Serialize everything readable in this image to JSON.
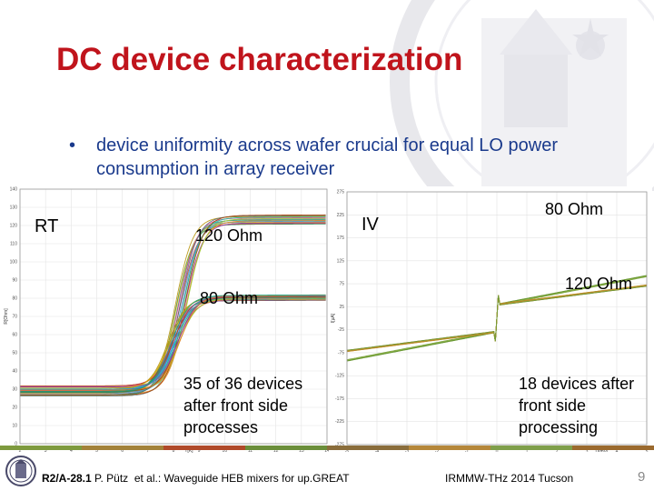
{
  "slide": {
    "title": "DC device characterization",
    "bullet": "device uniformity across wafer crucial for equal LO power consumption in array receiver",
    "bullet_marker": "•",
    "page_number": "9"
  },
  "labels": {
    "rt": "RT",
    "ohm120_left": "120 Ohm",
    "ohm80_left": "80 Ohm",
    "iv": "IV",
    "ohm80_right": "80 Ohm",
    "ohm120_right": "120 Ohm",
    "devices_left": "35 of 36 devices after front side processes",
    "devices_right": "18 devices after front side processing"
  },
  "footer": {
    "ref_bold": "R2/A-28.1",
    "ref_rest": " P. Pütz  et al.: Waveguide HEB mixers for up.GREAT",
    "conference": "IRMMW-THz 2014 Tucson",
    "bar_colors": [
      "#7e9a3e",
      "#a3823a",
      "#b04a2a",
      "#6b8e3a",
      "#8a6d3b",
      "#b5873a",
      "#7f9f4a",
      "#9b6a2e"
    ]
  },
  "colors": {
    "title": "#c0141c",
    "bullet": "#1a3a8c"
  },
  "chart_data": [
    {
      "type": "line",
      "title": "",
      "xlabel": "T[K]",
      "ylabel": "R[Ohm]",
      "xlim": [
        2,
        14
      ],
      "ylim": [
        0,
        140
      ],
      "x_ticks": [
        "2",
        "3",
        "4",
        "5",
        "6",
        "7",
        "8",
        "9",
        "10",
        "11",
        "12",
        "13",
        "14"
      ],
      "y_ticks": [
        "0",
        "10",
        "20",
        "30",
        "40",
        "50",
        "60",
        "70",
        "80",
        "90",
        "100",
        "110",
        "120",
        "130",
        "140"
      ],
      "grid": true,
      "series_groups": [
        {
          "count": 14,
          "base_normal_resistance": 123,
          "spread": 5,
          "transition_temperature": 8.3,
          "width": 0.35,
          "residual": 28
        },
        {
          "count": 21,
          "base_normal_resistance": 80,
          "spread": 3,
          "transition_temperature": 8.0,
          "width": 0.35,
          "residual": 30
        }
      ]
    },
    {
      "type": "line",
      "title": "",
      "xlabel": "U[mV]",
      "ylabel": "I[µA]",
      "xlim": [
        -5,
        5
      ],
      "ylim": [
        -275,
        275
      ],
      "x_ticks": [
        "-5",
        "-4",
        "-3",
        "-2",
        "-1",
        "0",
        "1",
        "2",
        "3",
        "4",
        "5"
      ],
      "y_ticks": [
        "-275",
        "-225",
        "-175",
        "-125",
        "-75",
        "-25",
        "25",
        "75",
        "125",
        "175",
        "225",
        "275"
      ],
      "grid": true,
      "series_groups": [
        {
          "count": 8,
          "resistance_ohm": 80
        },
        {
          "count": 10,
          "resistance_ohm": 120
        }
      ]
    }
  ]
}
